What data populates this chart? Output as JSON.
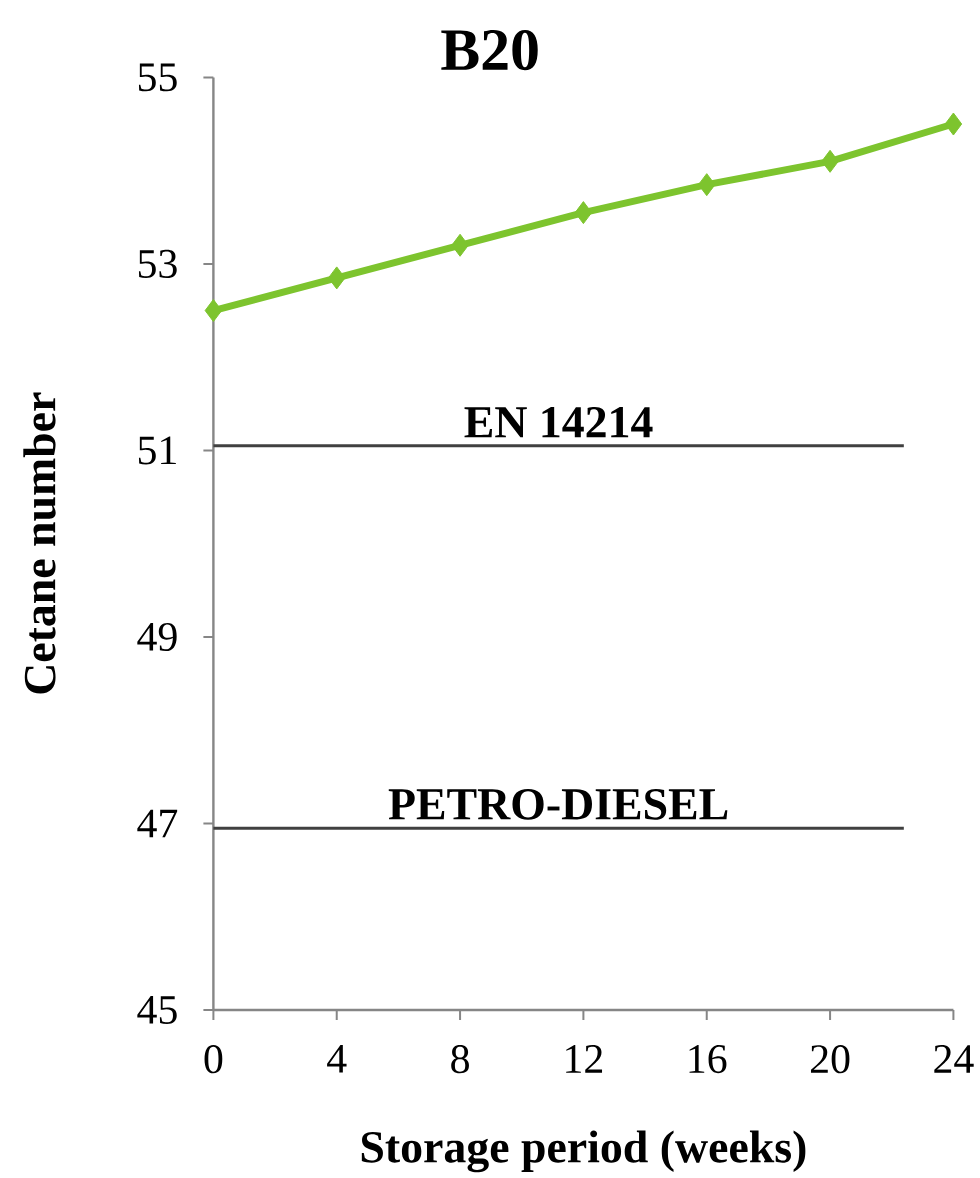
{
  "chart_data": {
    "type": "line",
    "title": "B20",
    "xlabel": "Storage period (weeks)",
    "ylabel": "Cetane number",
    "x": [
      0,
      4,
      8,
      12,
      16,
      20,
      24
    ],
    "values": [
      52.5,
      52.85,
      53.2,
      53.55,
      53.85,
      54.1,
      54.5
    ],
    "color": "#7dc42e",
    "marker": "diamond",
    "xlim": [
      0,
      24
    ],
    "xticks": [
      0,
      4,
      8,
      12,
      16,
      20,
      24
    ],
    "ylim": [
      45,
      55
    ],
    "yticks": [
      45,
      47,
      49,
      51,
      53,
      55
    ],
    "ref_lines": [
      {
        "axis": "y",
        "value": 51.05,
        "label": "EN 14214",
        "color": "#404040"
      },
      {
        "axis": "y",
        "value": 46.95,
        "label": "PETRO-DIESEL",
        "color": "#404040"
      }
    ]
  }
}
